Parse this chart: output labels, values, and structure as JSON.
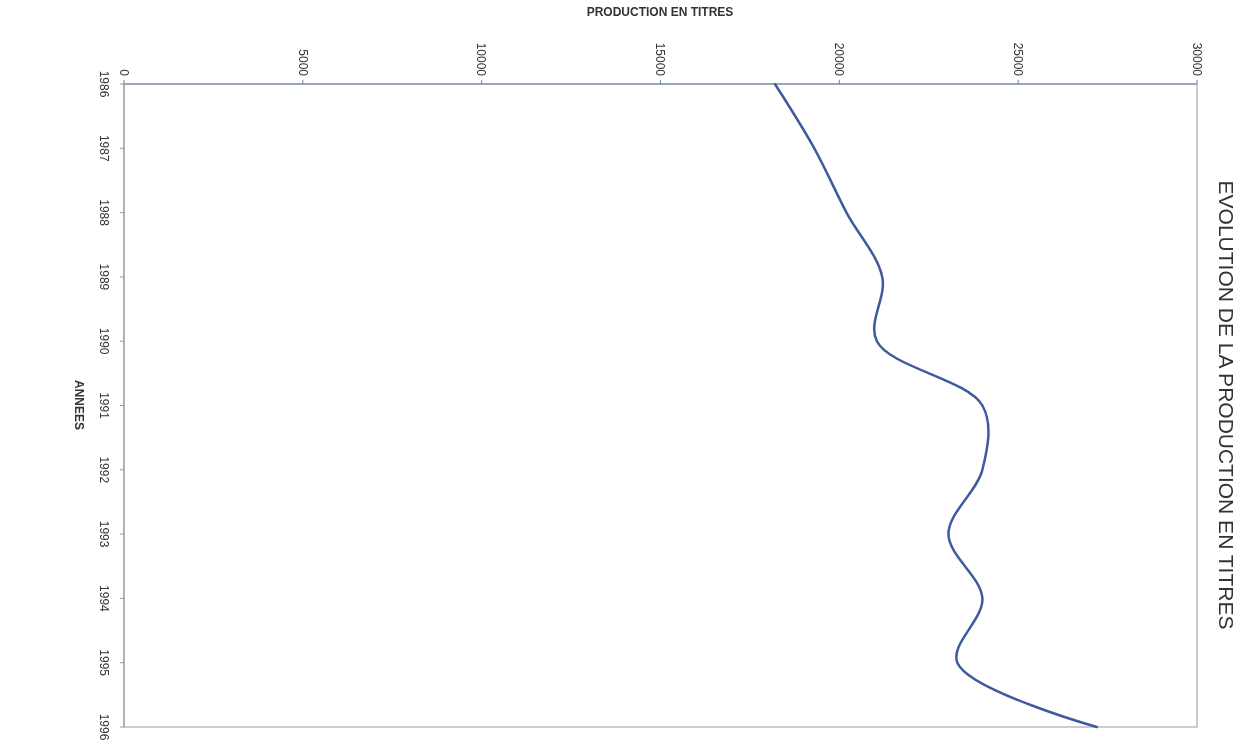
{
  "chart_data": {
    "type": "line",
    "orientation": "horizontal",
    "title": "EVOLUTION DE LA PRODUCTION EN TITRES",
    "xlabel": "PRODUCTION EN TITRES",
    "ylabel": "ANNEES",
    "categories": [
      "1986",
      "1987",
      "1988",
      "1989",
      "1990",
      "1991",
      "1992",
      "1993",
      "1994",
      "1995",
      "1996"
    ],
    "series": [
      {
        "color": "#3f5a9e",
        "values": [
          18200,
          19300,
          20200,
          21200,
          21050,
          24000,
          24000,
          23050,
          24000,
          23300,
          27200
        ]
      }
    ],
    "xlim": [
      0,
      30000
    ],
    "xticks": [
      0,
      5000,
      10000,
      15000,
      20000,
      25000,
      30000
    ]
  }
}
